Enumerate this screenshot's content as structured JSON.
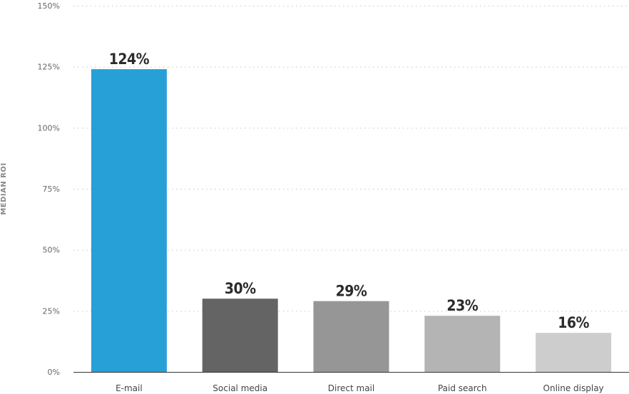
{
  "chart_data": {
    "type": "bar",
    "title": "",
    "xlabel": "",
    "ylabel": "MEDIAN ROI",
    "categories": [
      "E-mail",
      "Social media",
      "Direct mail",
      "Paid search",
      "Online display"
    ],
    "values": [
      124,
      30,
      29,
      23,
      16
    ],
    "value_labels": [
      "124%",
      "30%",
      "29%",
      "23%",
      "16%"
    ],
    "bar_colors": [
      "#27a0d7",
      "#646464",
      "#969696",
      "#b4b4b4",
      "#cdcdcd"
    ],
    "ylim": [
      0,
      150
    ],
    "yticks": [
      0,
      25,
      50,
      75,
      100,
      125,
      150
    ],
    "ytick_labels": [
      "0%",
      "25%",
      "50%",
      "75%",
      "100%",
      "125%",
      "150%"
    ],
    "grid": true,
    "legend": "none"
  }
}
